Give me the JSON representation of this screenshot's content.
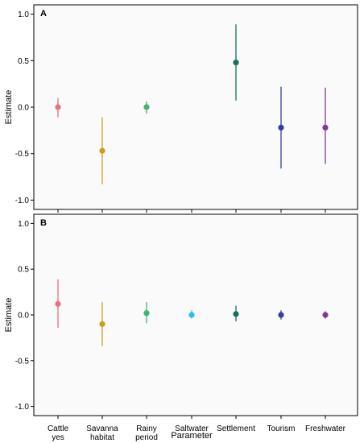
{
  "chart_data": {
    "type": "scatter",
    "xlabel": "Parameter",
    "ylabel": "Estimate",
    "categories": [
      [
        "Cattle",
        "yes"
      ],
      [
        "Savanna",
        "habitat"
      ],
      [
        "Rainy",
        "period"
      ],
      [
        "Saltwater"
      ],
      [
        "Settlement"
      ],
      [
        "Tourism"
      ],
      [
        "Freshwater"
      ]
    ],
    "ylim": [
      -1.1,
      1.1
    ],
    "yticks": [
      1.0,
      0.5,
      0.0,
      -0.5,
      -1.0
    ],
    "ytick_labels": [
      "1.0",
      "0.5",
      "0.0",
      "-0.5",
      "-1.0"
    ],
    "grid": false,
    "panels": [
      {
        "label": "A",
        "points": [
          {
            "category": 0,
            "estimate": 0.0,
            "lower": -0.11,
            "upper": 0.1,
            "color": "#e5717c"
          },
          {
            "category": 1,
            "estimate": -0.47,
            "lower": -0.83,
            "upper": -0.11,
            "color": "#c4a11c"
          },
          {
            "category": 2,
            "estimate": 0.0,
            "lower": -0.07,
            "upper": 0.06,
            "color": "#3fb56b"
          },
          {
            "category": 4,
            "estimate": 0.48,
            "lower": 0.07,
            "upper": 0.89,
            "color": "#15705d"
          },
          {
            "category": 5,
            "estimate": -0.22,
            "lower": -0.66,
            "upper": 0.22,
            "color": "#2f3f99"
          },
          {
            "category": 6,
            "estimate": -0.22,
            "lower": -0.61,
            "upper": 0.21,
            "color": "#7b3a91"
          }
        ]
      },
      {
        "label": "B",
        "points": [
          {
            "category": 0,
            "estimate": 0.12,
            "lower": -0.14,
            "upper": 0.39,
            "color": "#e5717c"
          },
          {
            "category": 1,
            "estimate": -0.1,
            "lower": -0.34,
            "upper": 0.14,
            "color": "#c4a11c"
          },
          {
            "category": 2,
            "estimate": 0.02,
            "lower": -0.09,
            "upper": 0.14,
            "color": "#3fb56b"
          },
          {
            "category": 3,
            "estimate": 0.0,
            "lower": -0.04,
            "upper": 0.05,
            "color": "#2bbde6"
          },
          {
            "category": 4,
            "estimate": 0.01,
            "lower": -0.07,
            "upper": 0.1,
            "color": "#15705d"
          },
          {
            "category": 5,
            "estimate": 0.0,
            "lower": -0.05,
            "upper": 0.05,
            "color": "#2f3f99"
          },
          {
            "category": 6,
            "estimate": 0.0,
            "lower": -0.04,
            "upper": 0.04,
            "color": "#7b3a91"
          }
        ]
      }
    ]
  }
}
